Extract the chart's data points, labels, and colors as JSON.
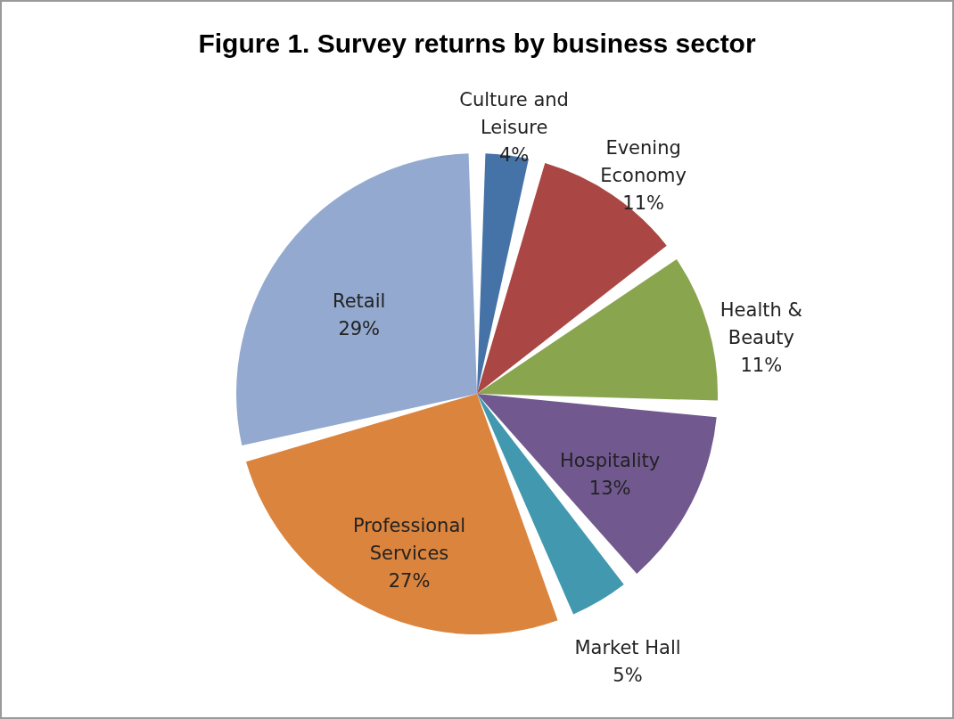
{
  "chart_data": {
    "type": "pie",
    "title": "Figure 1. Survey returns by business sector",
    "categories": [
      "Culture and Leisure",
      "Evening Economy",
      "Health & Beauty",
      "Hospitality",
      "Market Hall",
      "Professional Services",
      "Retail"
    ],
    "values": [
      4,
      11,
      11,
      13,
      5,
      27,
      29
    ],
    "value_labels": [
      "4%",
      "11%",
      "11%",
      "13%",
      "5%",
      "27%",
      "29%"
    ],
    "colors": [
      "#4572a7",
      "#aa4643",
      "#89a54e",
      "#71588f",
      "#4198af",
      "#db843d",
      "#93a9cf"
    ],
    "legend": false
  }
}
